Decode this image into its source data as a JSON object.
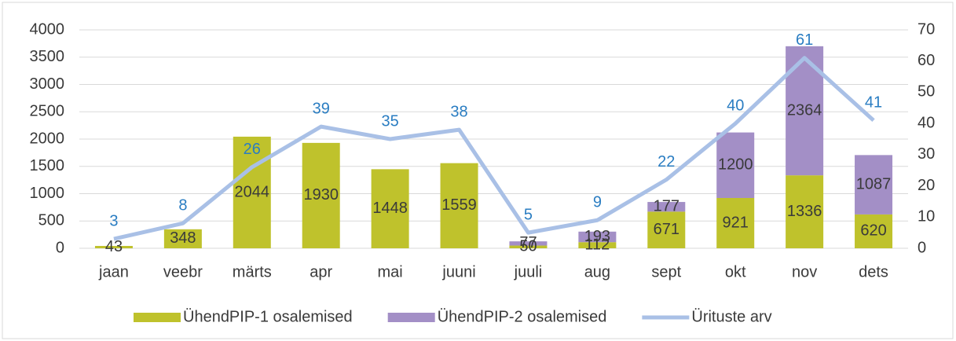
{
  "chart_data": {
    "type": "bar",
    "stacked": true,
    "categories": [
      "jaan",
      "veebr",
      "märts",
      "apr",
      "mai",
      "juuni",
      "juuli",
      "aug",
      "sept",
      "okt",
      "nov",
      "dets"
    ],
    "series": [
      {
        "name": "ÜhendPIP-1 osalemised",
        "color": "#bfc22c",
        "values": [
          43,
          348,
          2044,
          1930,
          1448,
          1559,
          50,
          112,
          671,
          921,
          1336,
          620
        ]
      },
      {
        "name": "ÜhendPIP-2 osalemised",
        "color": "#a38fc6",
        "values": [
          null,
          null,
          null,
          null,
          null,
          null,
          77,
          193,
          177,
          1200,
          2364,
          1087
        ]
      },
      {
        "name": "Ürituste arv",
        "type": "line",
        "axis": "y2",
        "color": "#a9c0e6",
        "label_color": "#2a7dc2",
        "values": [
          3,
          8,
          26,
          39,
          35,
          38,
          5,
          9,
          22,
          40,
          61,
          41
        ]
      }
    ],
    "ylim": [
      0,
      4000
    ],
    "yticks": [
      0,
      500,
      1000,
      1500,
      2000,
      2500,
      3000,
      3500,
      4000
    ],
    "y2lim": [
      0,
      70
    ],
    "y2ticks": [
      0,
      10,
      20,
      30,
      40,
      50,
      60,
      70
    ],
    "grid": true,
    "legend": "bottom"
  }
}
